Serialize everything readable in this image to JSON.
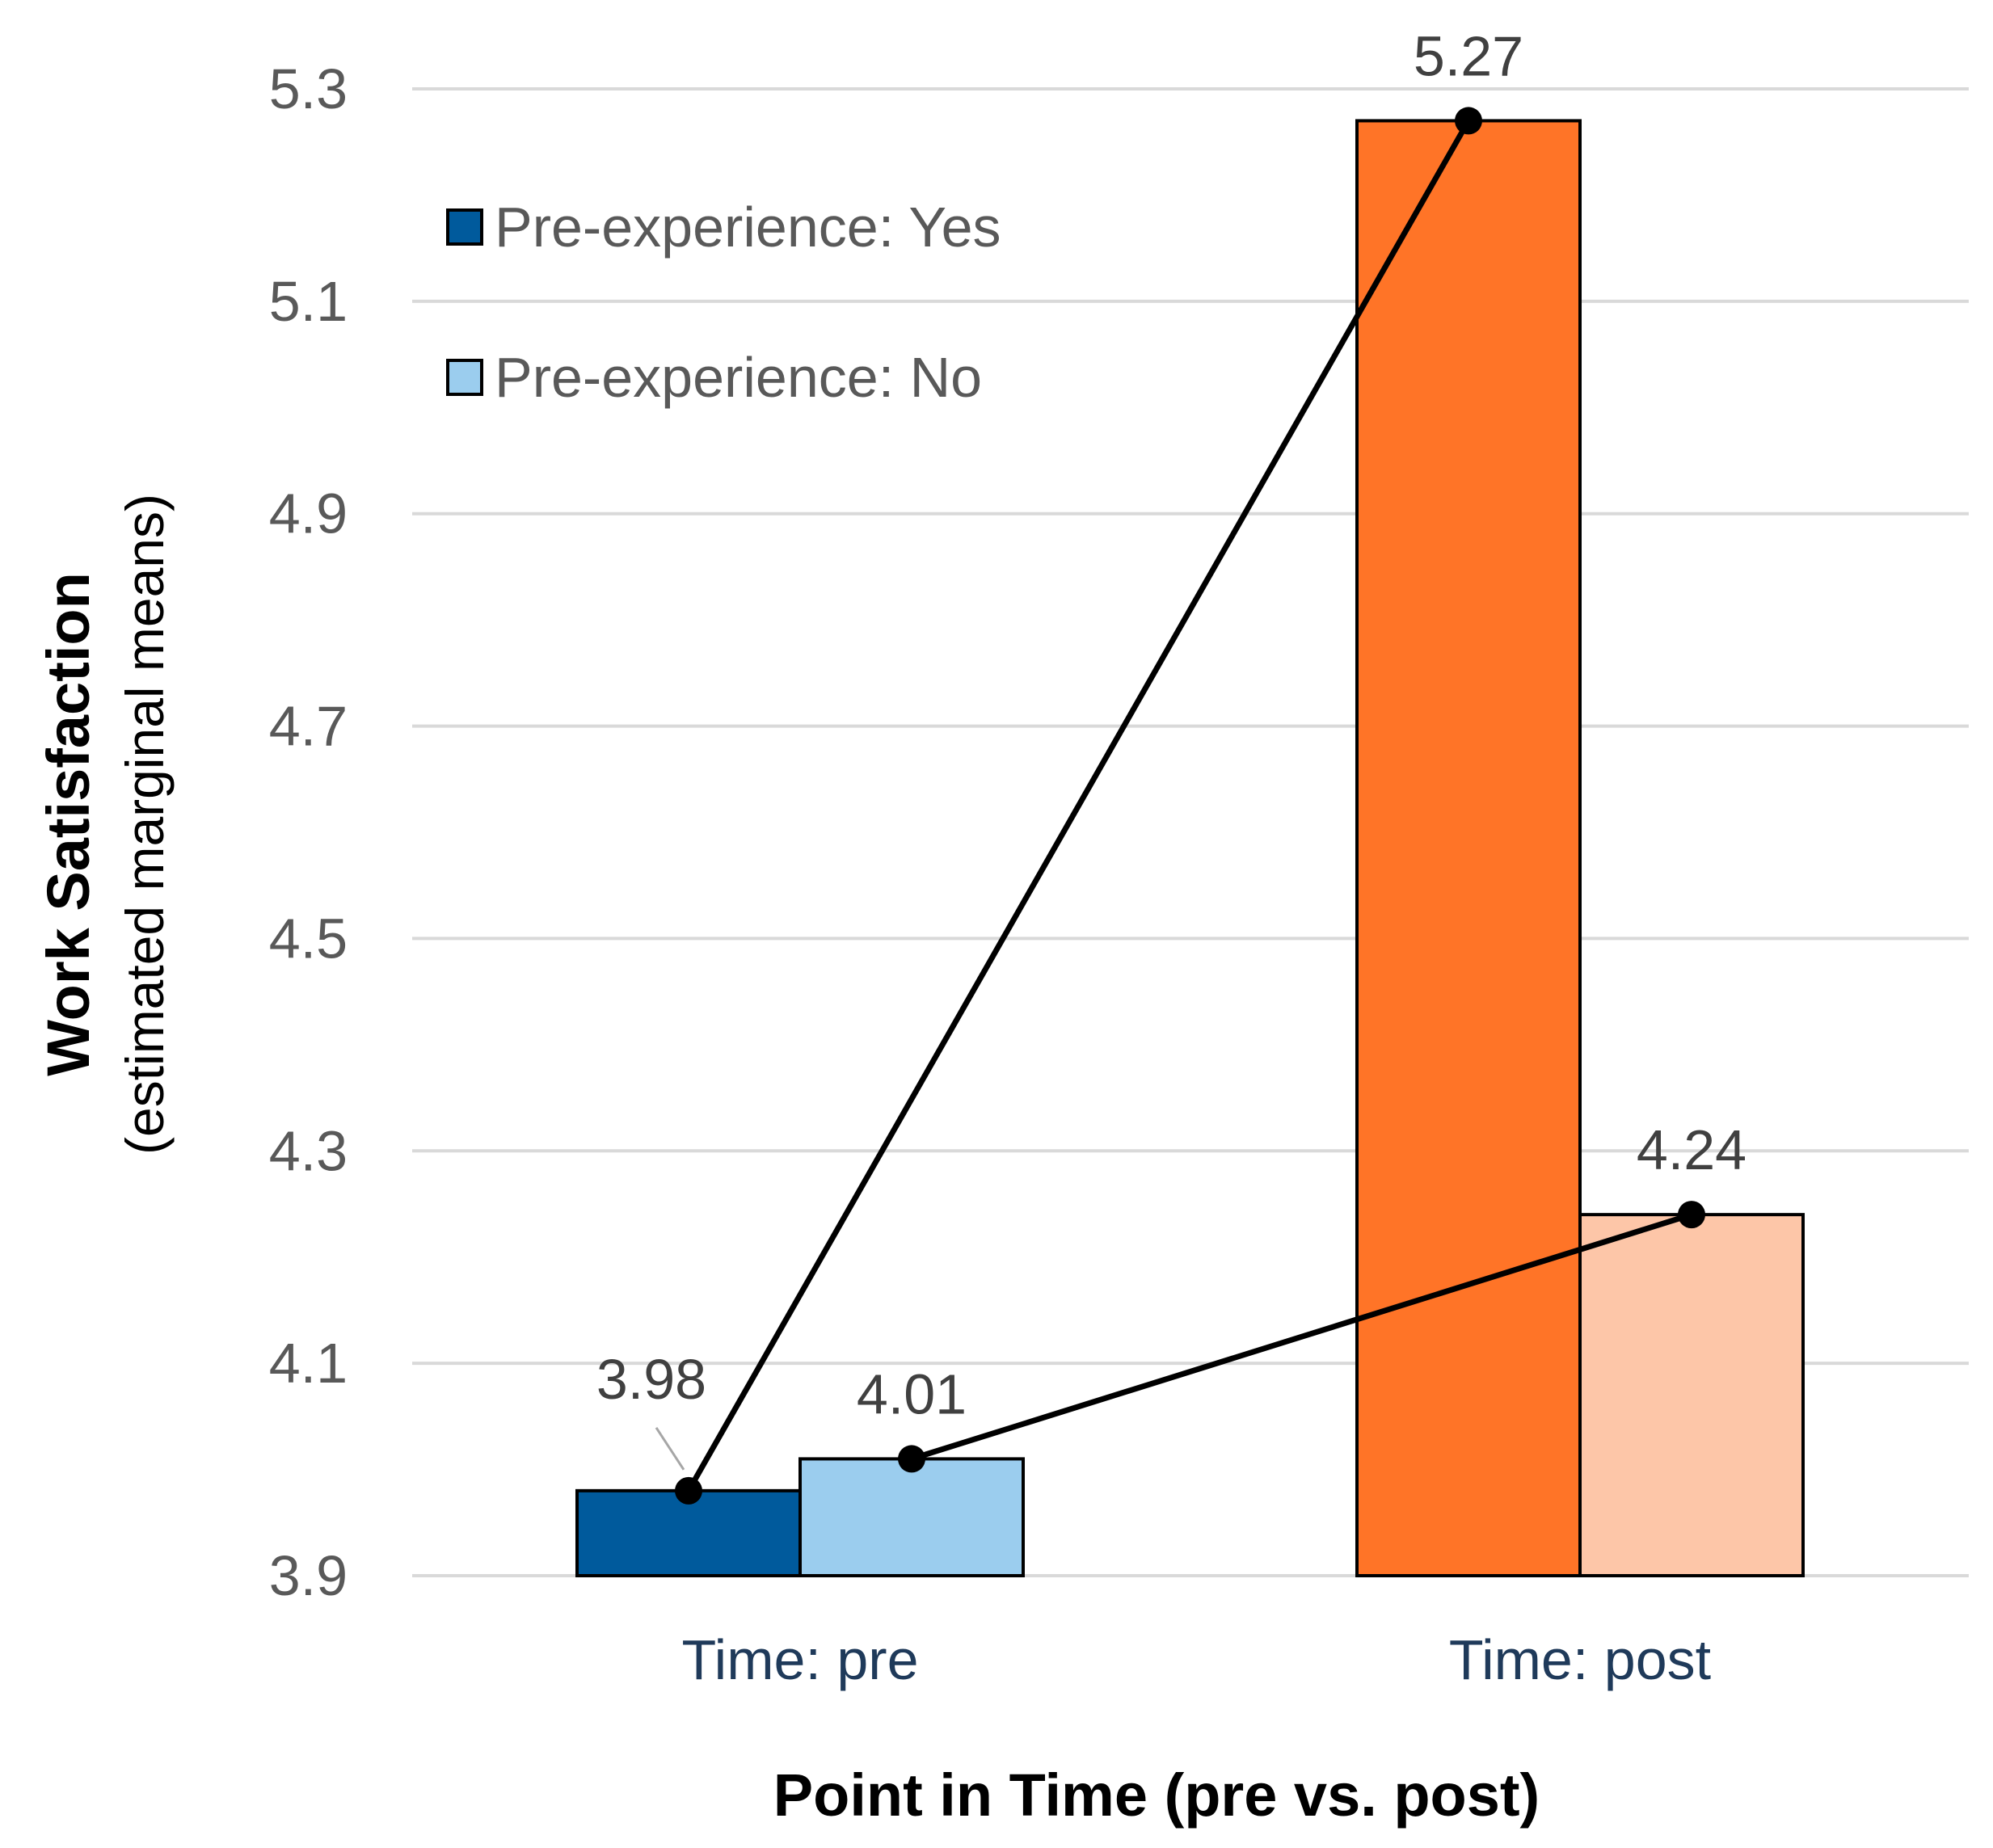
{
  "chart_data": {
    "type": "bar",
    "categories": [
      "Time: pre",
      "Time: post"
    ],
    "series": [
      {
        "name": "Pre-experience: Yes",
        "values": [
          3.98,
          5.27
        ],
        "labels": [
          "3.98",
          "5.27"
        ],
        "colors": [
          "#005a9c",
          "#ff7427"
        ]
      },
      {
        "name": "Pre-experience: No",
        "values": [
          4.01,
          4.24
        ],
        "labels": [
          "4.01",
          "4.24"
        ],
        "colors": [
          "#9bcdee",
          "#fdc6a8"
        ]
      }
    ],
    "legend": {
      "position": "top-left",
      "entries": [
        "Pre-experience: Yes",
        "Pre-experience: No"
      ],
      "swatches": [
        "#005a9c",
        "#9bcdee"
      ]
    },
    "ylabel": "Work Satisfaction",
    "ylabel_sub": "(estimated marginal means)",
    "xlabel": "Point in Time (pre vs. post)",
    "ylim": [
      3.9,
      5.3
    ],
    "yticks": [
      "3.9",
      "4.1",
      "4.3",
      "4.5",
      "4.7",
      "4.9",
      "5.1",
      "5.3"
    ],
    "grid": true,
    "overlay_lines": "connects each series across time points with black markers"
  }
}
